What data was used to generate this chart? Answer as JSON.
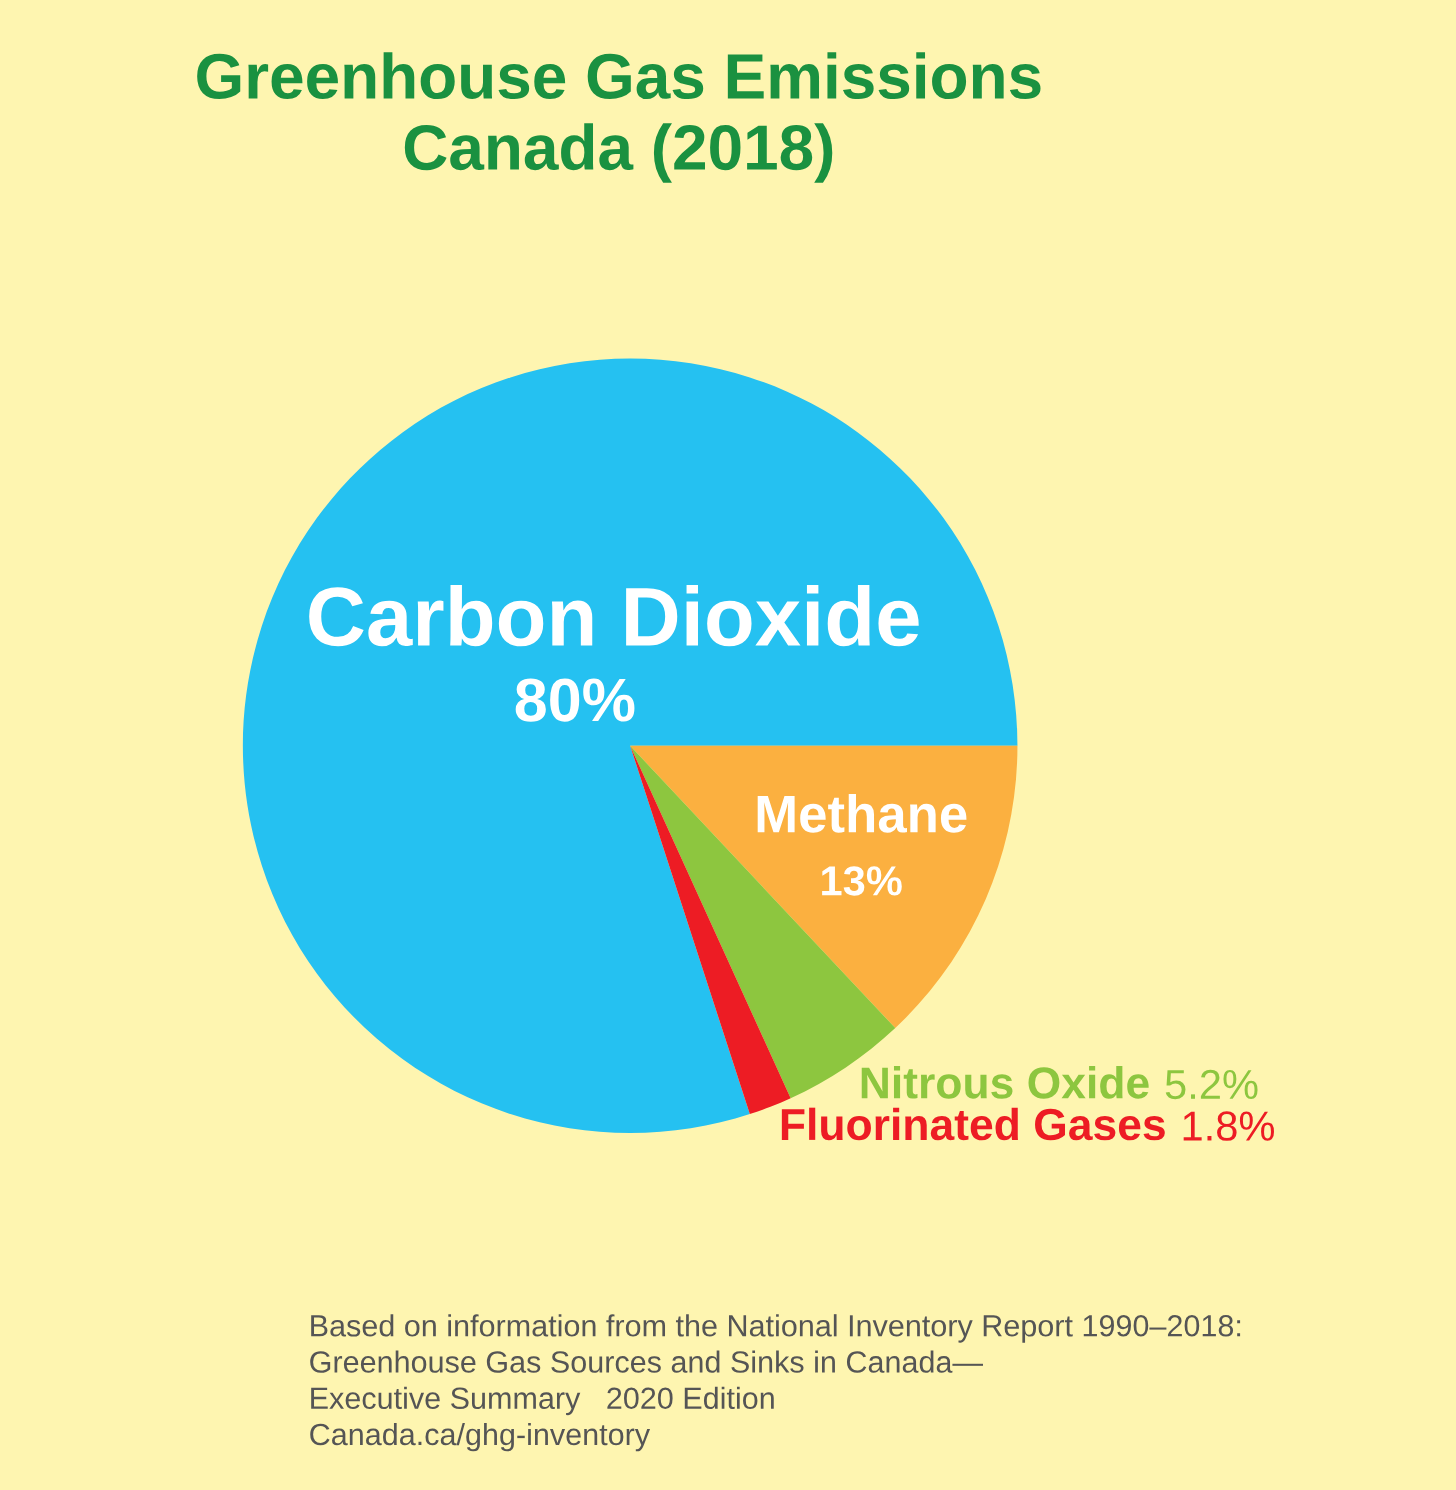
{
  "chart_data": {
    "type": "pie",
    "title": "Greenhouse Gas Emissions\nCanada (2018)",
    "categories": [
      "Carbon Dioxide",
      "Methane",
      "Nitrous Oxide",
      "Fluorinated Gases"
    ],
    "values": [
      80,
      13,
      5.2,
      1.8
    ],
    "value_labels": [
      "80%",
      "13%",
      "5.2%",
      "1.8%"
    ],
    "colors": [
      "#25c1f1",
      "#fbb040",
      "#8dc63f",
      "#ed1c24"
    ],
    "legend": false,
    "annotations": [
      "Based on information from the National Inventory Report 1990–2018:\nGreenhouse Gas Sources and Sinks in Canada—\nExecutive Summary   2020 Edition\nCanada.ca/ghg-inventory"
    ]
  }
}
